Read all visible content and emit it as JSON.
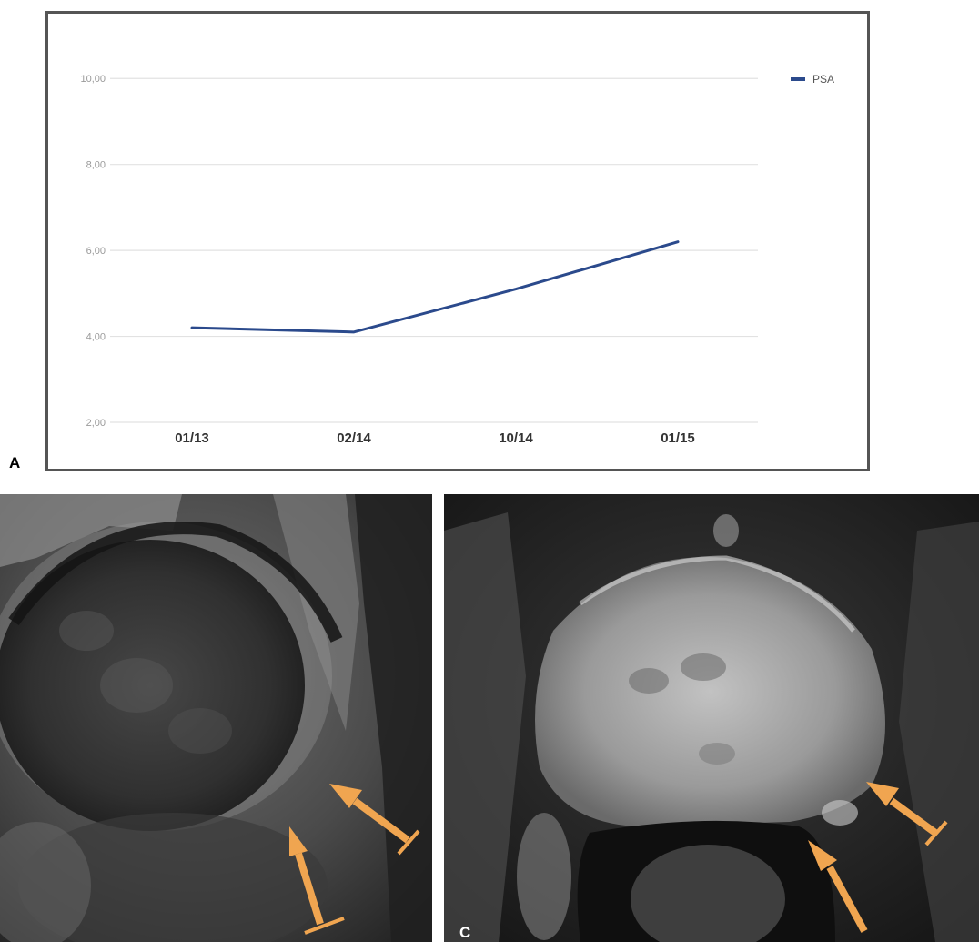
{
  "panels": {
    "a_label": "A",
    "b_label": "",
    "c_label": "C"
  },
  "chart_data": {
    "type": "line",
    "categories": [
      "01/13",
      "02/14",
      "10/14",
      "01/15"
    ],
    "y_ticks": [
      "2,00",
      "4,00",
      "6,00",
      "8,00",
      "10,00"
    ],
    "ylim": [
      2,
      11
    ],
    "grid": true,
    "legend_position": "top-right",
    "series": [
      {
        "name": "PSA",
        "values": [
          4.2,
          4.1,
          5.1,
          6.2
        ],
        "color": "#2b4a8c"
      }
    ],
    "title": "",
    "xlabel": "",
    "ylabel": ""
  },
  "annotation_color": "#f0a550"
}
